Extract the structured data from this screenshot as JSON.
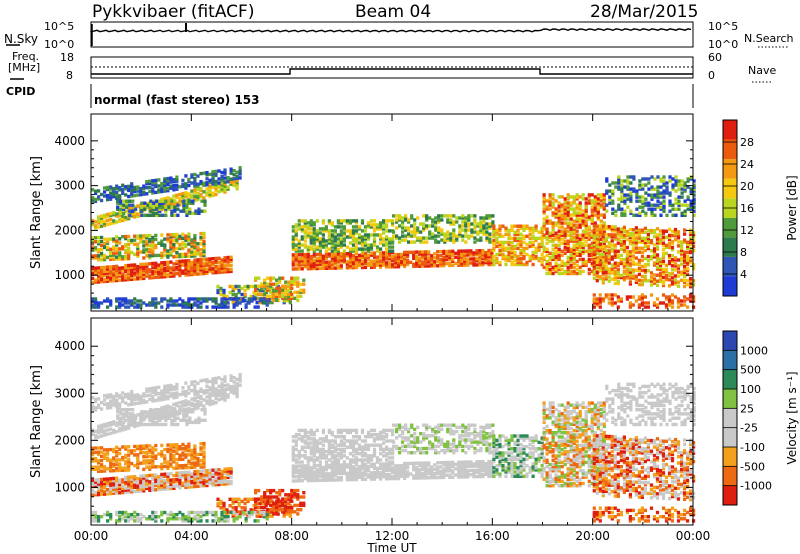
{
  "header": {
    "station": "Pykkvibaer (fitACF)",
    "beam": "Beam 04",
    "date": "28/Mar/2015"
  },
  "panels": {
    "nsky_label": "N.Sky",
    "nsky_ticks": [
      "10^5",
      "10^0"
    ],
    "nsearch_ticks": [
      "10^5",
      "10^0"
    ],
    "nsearch_label": "N.Search",
    "freq_label": "Freq.",
    "freq_unit": "[MHz]",
    "freq_ticks": [
      "18",
      "8"
    ],
    "nave_ticks": [
      "60",
      "0"
    ],
    "nave_label": "Nave",
    "cpid_label": "CPID",
    "cpid_text": "normal (fast stereo) 153"
  },
  "colors": {
    "power": [
      "#1f3bd6",
      "#2f56b4",
      "#2d7a4d",
      "#4f9b3b",
      "#b9d51f",
      "#f5c90f",
      "#f39a12",
      "#ec5a10",
      "#e01e0f"
    ],
    "velocity": [
      "#2d47b0",
      "#2c6fa5",
      "#2c8a58",
      "#7fc140",
      "#c9c9c9",
      "#c9c9c9",
      "#f3a11c",
      "#ee6a12",
      "#df1e0f"
    ]
  },
  "chart_data": [
    {
      "type": "heatmap",
      "name": "power",
      "ylabel": "Slant Range [km]",
      "y_ticks": [
        1000,
        2000,
        3000,
        4000
      ],
      "ylim": [
        200,
        4600
      ],
      "xlim": [
        0,
        24
      ],
      "colorbar_label": "Power [dB]",
      "colorbar_ticks": [
        4,
        8,
        12,
        16,
        20,
        24,
        28
      ],
      "colorbar_range": [
        0,
        32
      ]
    },
    {
      "type": "heatmap",
      "name": "velocity",
      "ylabel": "Slant Range [km]",
      "y_ticks": [
        1000,
        2000,
        3000,
        4000
      ],
      "ylim": [
        200,
        4600
      ],
      "xlim": [
        0,
        24
      ],
      "xlabel": "Time UT",
      "x_ticks": [
        "00:00",
        "04:00",
        "08:00",
        "12:00",
        "16:00",
        "20:00",
        "00:00"
      ],
      "colorbar_label": "Velocity [m s⁻¹]",
      "colorbar_ticks": [
        "1000",
        "500",
        "100",
        "25",
        "-25",
        "-100",
        "-500",
        "-1000"
      ]
    }
  ]
}
